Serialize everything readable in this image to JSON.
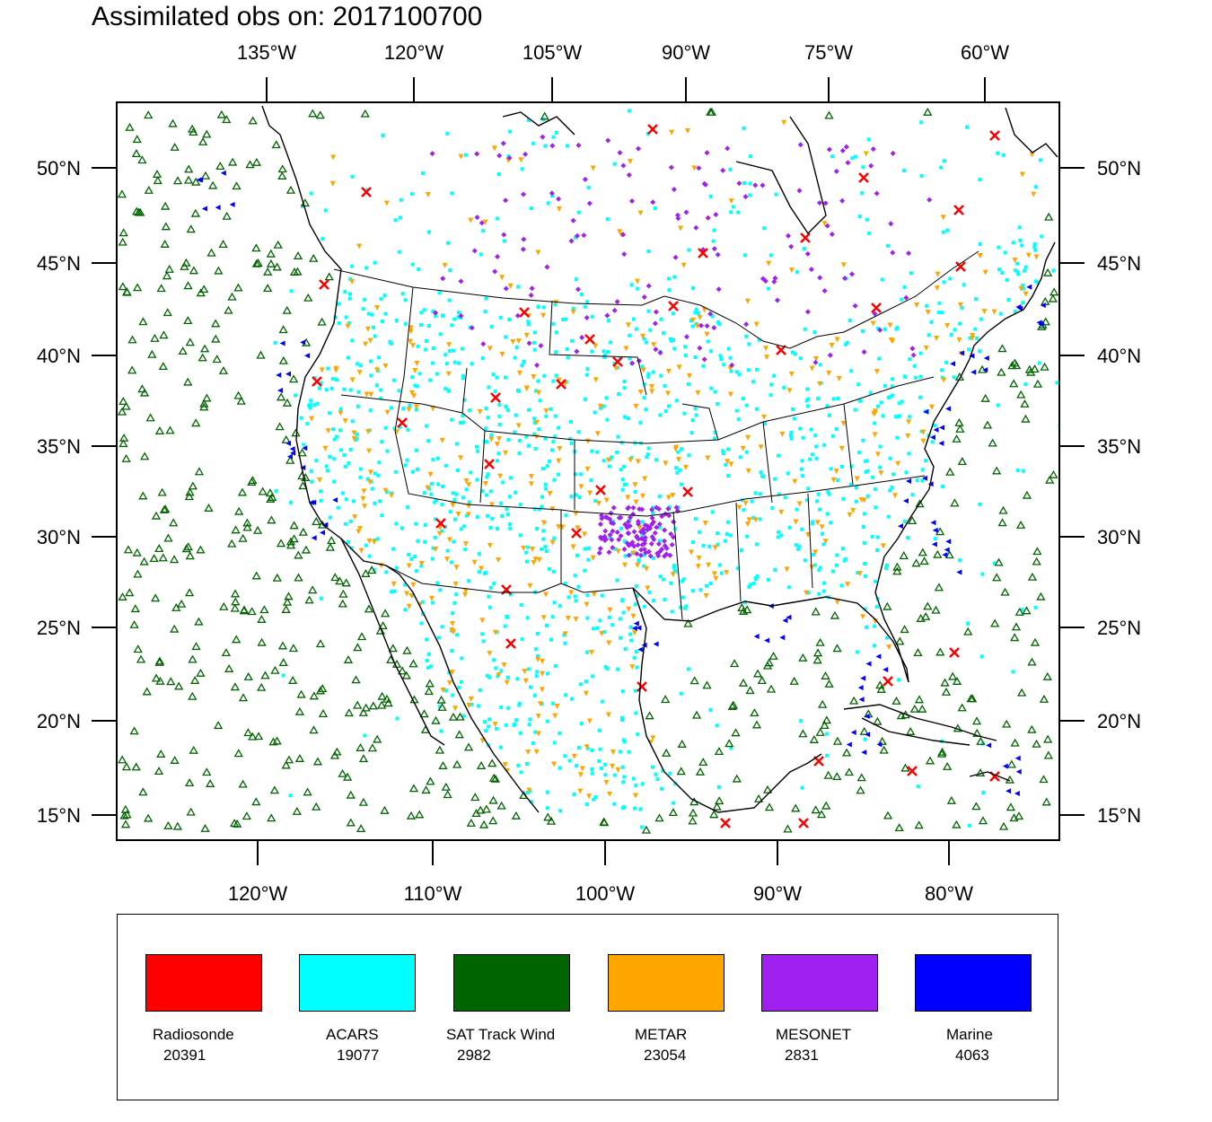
{
  "title": "Assimilated obs on: 2017100700",
  "top_lon_labels": [
    "135°W",
    "120°W",
    "105°W",
    "90°W",
    "75°W",
    "60°W"
  ],
  "bottom_lon_labels": [
    "120°W",
    "110°W",
    "100°W",
    "90°W",
    "80°W"
  ],
  "lat_labels": [
    "50°N",
    "45°N",
    "40°N",
    "35°N",
    "30°N",
    "25°N",
    "20°N",
    "15°N"
  ],
  "legend": [
    {
      "label": "Radiosonde",
      "count": "20391",
      "color": "#ff0000",
      "marker": "x-mark"
    },
    {
      "label": "ACARS",
      "count": "19077",
      "color": "#00ffff",
      "marker": "square-dot"
    },
    {
      "label": "SAT Track Wind",
      "count": "2982",
      "color": "#006400",
      "marker": "hollow-triangle"
    },
    {
      "label": "METAR",
      "count": "23054",
      "color": "#ffa500",
      "marker": "down-triangle"
    },
    {
      "label": "MESONET",
      "count": "2831",
      "color": "#a020f0",
      "marker": "diamond"
    },
    {
      "label": "Marine",
      "count": "4063",
      "color": "#0000ff",
      "marker": "left-triangle"
    }
  ]
}
